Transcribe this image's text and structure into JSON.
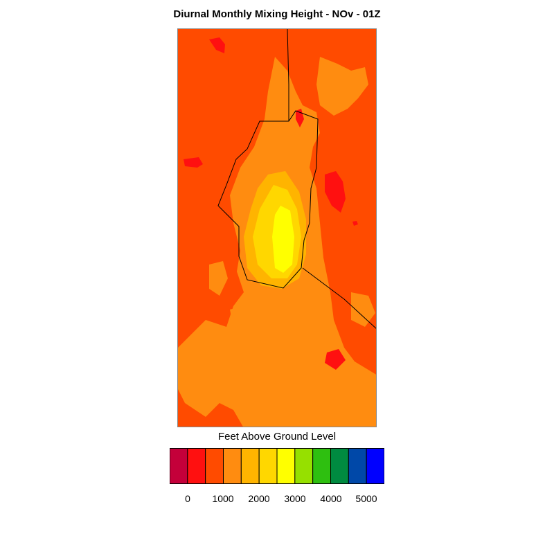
{
  "title": "Diurnal Monthly Mixing Height - NOv - 01Z",
  "colorbar": {
    "label": "Feet Above Ground Level",
    "colors": [
      "#c4003a",
      "#ff1010",
      "#ff4b00",
      "#ff8c10",
      "#ffb400",
      "#ffd700",
      "#ffff00",
      "#96e000",
      "#2ebf10",
      "#008a40",
      "#0048a8",
      "#0000ff"
    ],
    "tick_labels": [
      "0",
      "1000",
      "2000",
      "3000",
      "4000",
      "5000"
    ]
  },
  "map_colors": {
    "base": "#ff4b00",
    "light_orange": "#ff8c10",
    "amber": "#ffb400",
    "gold": "#ffd700",
    "yellow": "#ffff00",
    "red": "#ff1010",
    "boundary": "#000000"
  }
}
